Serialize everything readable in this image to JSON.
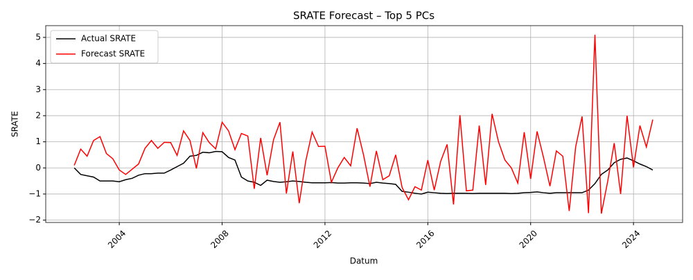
{
  "chart_data": {
    "type": "line",
    "title": "SRATE Forecast – Top 5 PCs",
    "xlabel": "Datum",
    "ylabel": "SRATE",
    "x": [
      2002.25,
      2002.5,
      2002.75,
      2003,
      2003.25,
      2003.5,
      2003.75,
      2004,
      2004.25,
      2004.5,
      2004.75,
      2005,
      2005.25,
      2005.5,
      2005.75,
      2006,
      2006.25,
      2006.5,
      2006.75,
      2007,
      2007.25,
      2007.5,
      2007.75,
      2008,
      2008.25,
      2008.5,
      2008.75,
      2009,
      2009.25,
      2009.5,
      2009.75,
      2010,
      2010.25,
      2010.5,
      2010.75,
      2011,
      2011.25,
      2011.5,
      2011.75,
      2012,
      2012.25,
      2012.5,
      2012.75,
      2013,
      2013.25,
      2013.5,
      2013.75,
      2014,
      2014.25,
      2014.5,
      2014.75,
      2015,
      2015.25,
      2015.5,
      2015.75,
      2016,
      2016.25,
      2016.5,
      2016.75,
      2017,
      2017.25,
      2017.5,
      2017.75,
      2018,
      2018.25,
      2018.5,
      2018.75,
      2019,
      2019.25,
      2019.5,
      2019.75,
      2020,
      2020.25,
      2020.5,
      2020.75,
      2021,
      2021.25,
      2021.5,
      2021.75,
      2022,
      2022.25,
      2022.5,
      2022.75,
      2023,
      2023.25,
      2023.5,
      2023.75,
      2024,
      2024.25,
      2024.5,
      2024.75
    ],
    "series": [
      {
        "name": "Actual SRATE",
        "color": "#000000",
        "values": [
          0.0,
          -0.25,
          -0.3,
          -0.35,
          -0.5,
          -0.5,
          -0.5,
          -0.53,
          -0.45,
          -0.4,
          -0.28,
          -0.22,
          -0.22,
          -0.2,
          -0.2,
          -0.08,
          0.05,
          0.18,
          0.45,
          0.48,
          0.6,
          0.58,
          0.63,
          0.62,
          0.4,
          0.3,
          -0.35,
          -0.5,
          -0.55,
          -0.67,
          -0.47,
          -0.52,
          -0.55,
          -0.53,
          -0.5,
          -0.52,
          -0.55,
          -0.57,
          -0.57,
          -0.57,
          -0.56,
          -0.58,
          -0.58,
          -0.57,
          -0.57,
          -0.58,
          -0.6,
          -0.55,
          -0.58,
          -0.6,
          -0.63,
          -0.9,
          -0.93,
          -0.97,
          -1.0,
          -0.93,
          -0.95,
          -0.97,
          -0.98,
          -0.97,
          -0.97,
          -0.97,
          -0.98,
          -0.97,
          -0.97,
          -0.97,
          -0.97,
          -0.97,
          -0.98,
          -0.97,
          -0.95,
          -0.94,
          -0.92,
          -0.95,
          -0.97,
          -0.95,
          -0.95,
          -0.95,
          -0.95,
          -0.95,
          -0.85,
          -0.6,
          -0.25,
          -0.08,
          0.2,
          0.33,
          0.38,
          0.27,
          0.15,
          0.05,
          -0.08
        ]
      },
      {
        "name": "Forecast SRATE",
        "color": "#ff0000",
        "values": [
          0.1,
          0.72,
          0.45,
          1.05,
          1.2,
          0.55,
          0.35,
          -0.08,
          -0.25,
          -0.05,
          0.15,
          0.75,
          1.05,
          0.75,
          0.98,
          0.97,
          0.48,
          1.42,
          1.05,
          -0.02,
          1.35,
          0.97,
          0.73,
          1.75,
          1.42,
          0.7,
          1.32,
          1.22,
          -0.8,
          1.15,
          -0.28,
          1.08,
          1.75,
          -0.98,
          0.63,
          -1.35,
          0.25,
          1.37,
          0.82,
          0.83,
          -0.55,
          0.0,
          0.4,
          0.08,
          1.52,
          0.5,
          -0.72,
          0.65,
          -0.45,
          -0.3,
          0.5,
          -0.75,
          -1.22,
          -0.72,
          -0.85,
          0.3,
          -0.85,
          0.25,
          0.9,
          -1.4,
          2.02,
          -0.88,
          -0.85,
          1.62,
          -0.65,
          2.07,
          1.0,
          0.3,
          0.0,
          -0.58,
          1.37,
          -0.42,
          1.4,
          0.4,
          -0.7,
          0.65,
          0.45,
          -1.65,
          0.8,
          1.97,
          -1.73,
          5.1,
          -1.75,
          -0.5,
          0.95,
          -1.0,
          2.0,
          0.02,
          1.62,
          0.8,
          1.85
        ]
      }
    ],
    "xlim": [
      2001.14,
      2025.91
    ],
    "xticks": [
      2004,
      2008,
      2012,
      2016,
      2020,
      2024
    ],
    "ylim": [
      -2.09,
      5.45
    ],
    "yticks": [
      {
        "value": -2,
        "label": "−2"
      },
      {
        "value": -1,
        "label": "−1"
      },
      0,
      1,
      2,
      3,
      4,
      5
    ],
    "grid": true,
    "legend": "upper left"
  }
}
